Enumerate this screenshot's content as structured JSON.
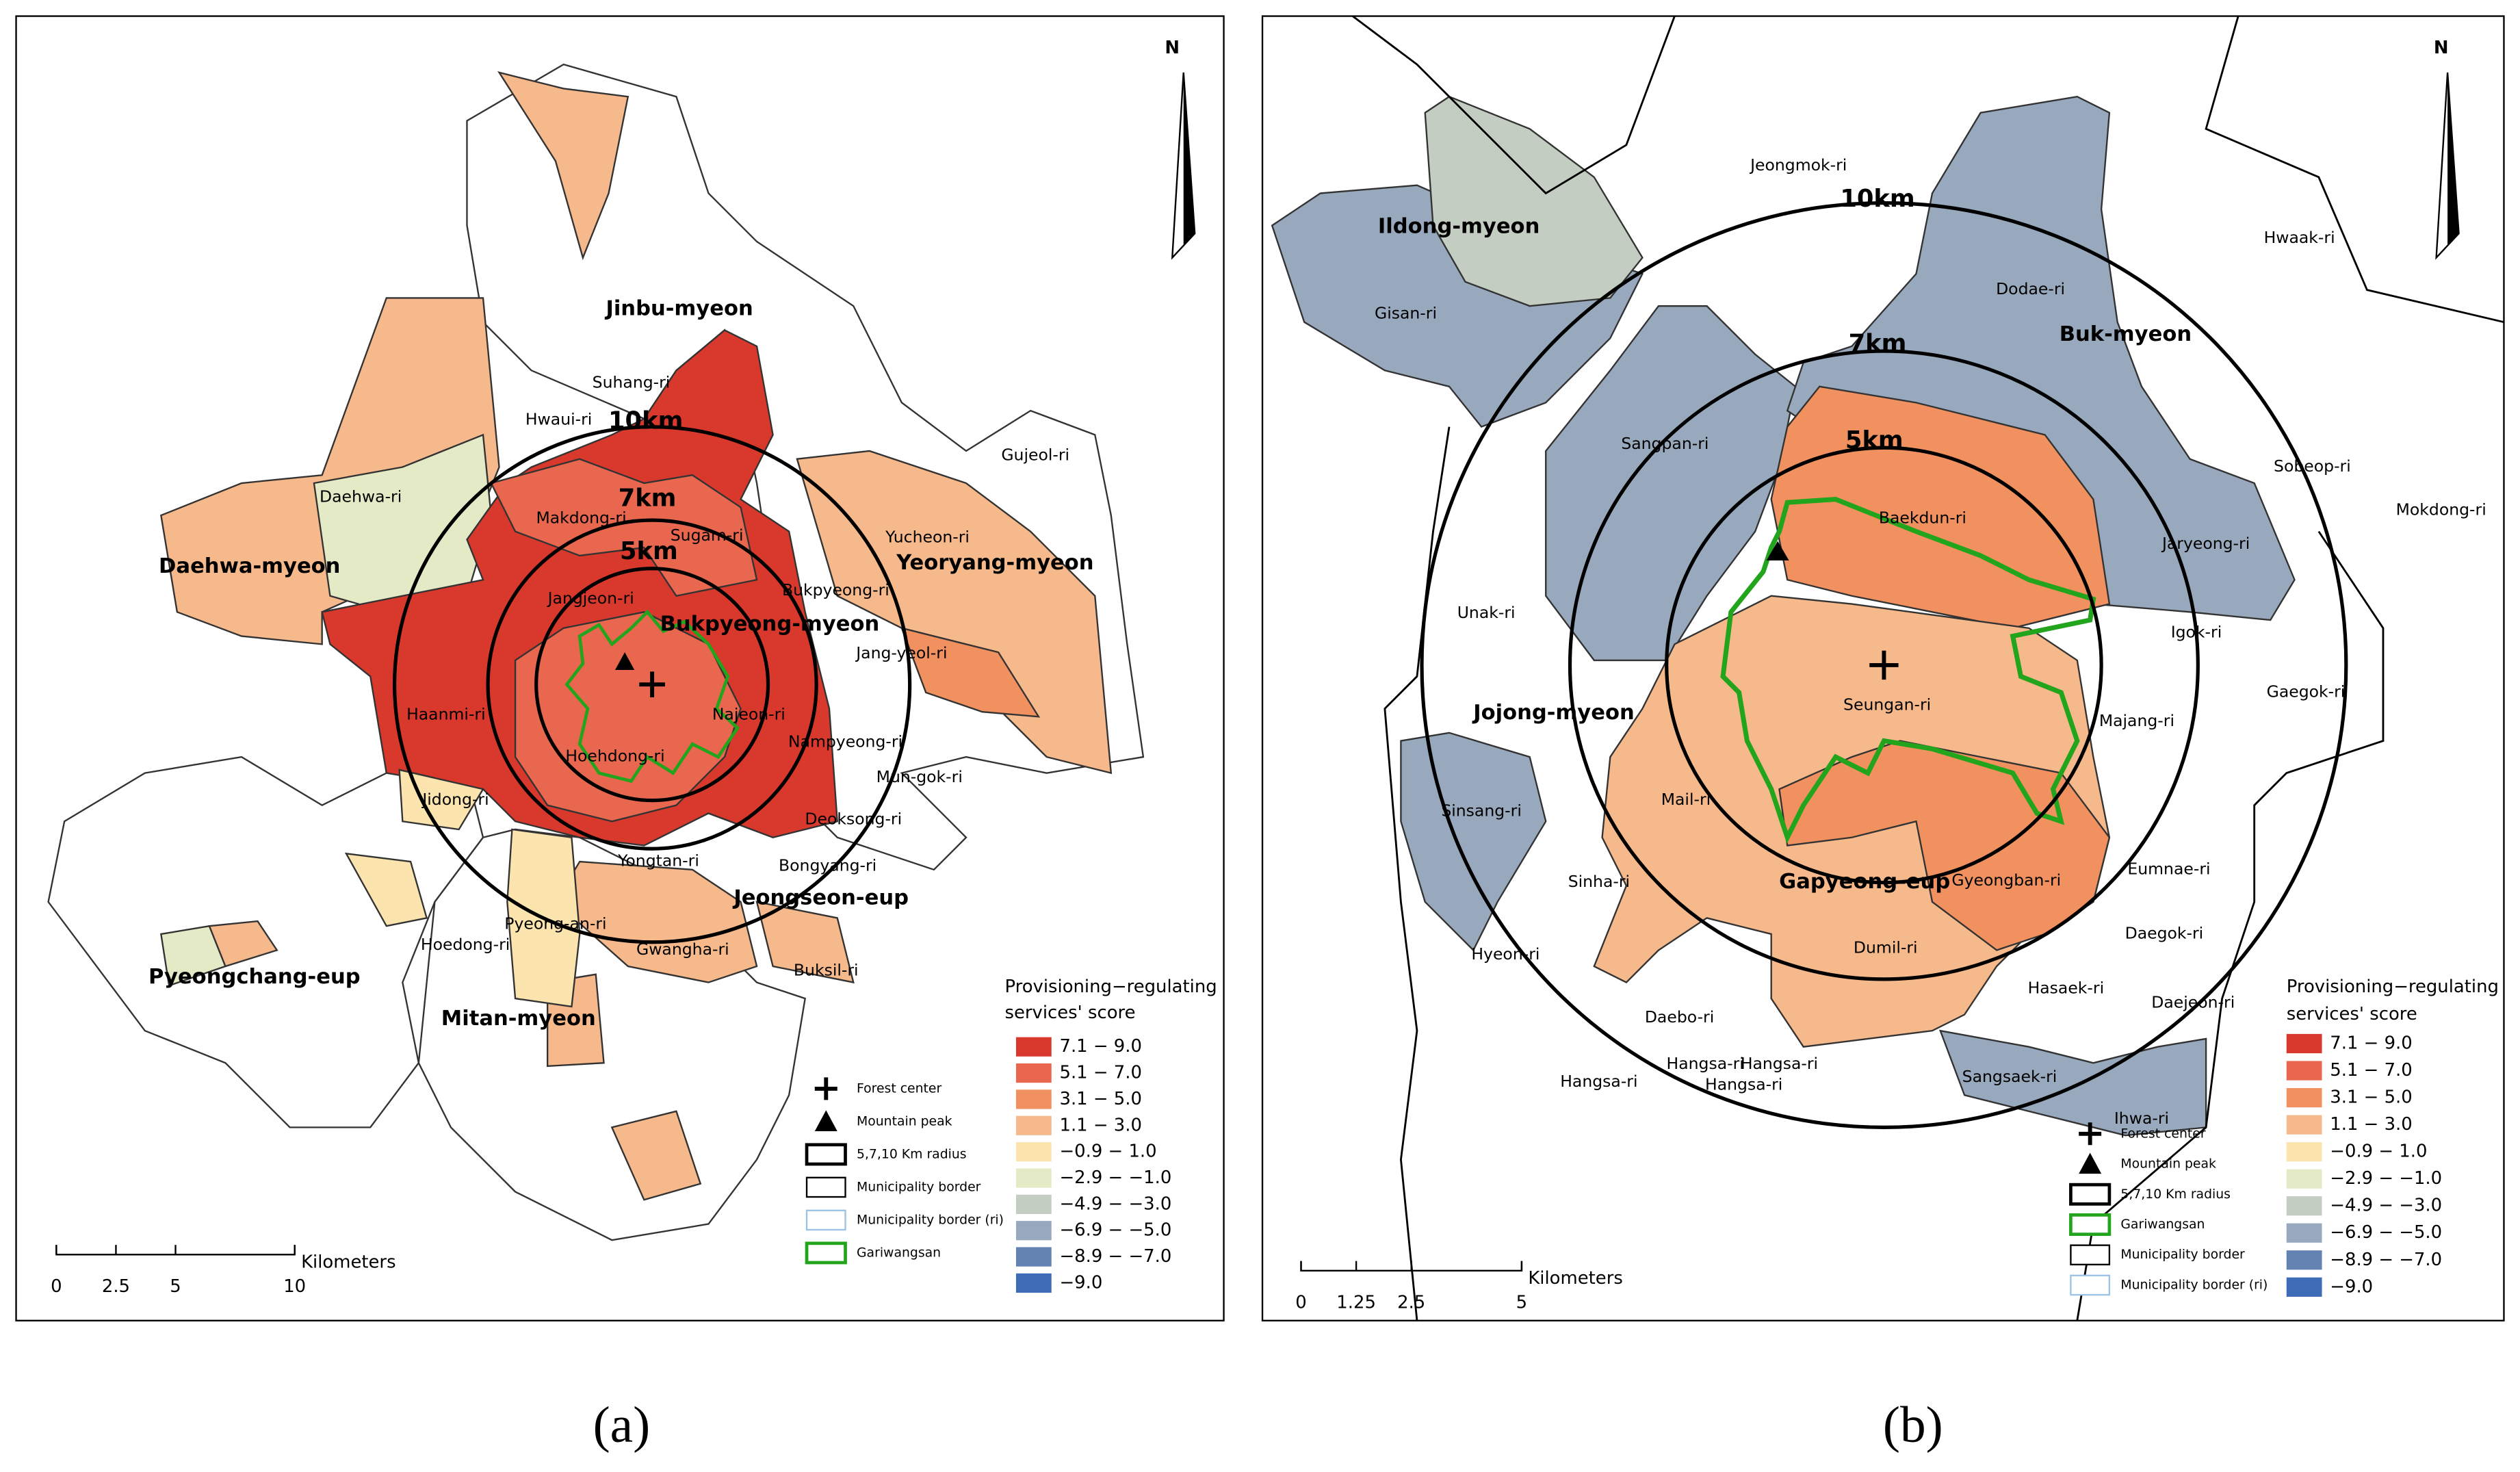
{
  "panels": [
    {
      "caption": "(a)",
      "north": "N",
      "radius_labels": [
        "10km",
        "7km",
        "5km"
      ],
      "places": [
        "Jinbu-myeon",
        "Suhang-ri",
        "Hwaui-ri",
        "Gujeol-ri",
        "Daehwa-ri",
        "Makdong-ri",
        "Sugam-ri",
        "Yucheon-ri",
        "Daehwa-myeon",
        "Yeoryang-myeon",
        "Jangjeon-ri",
        "Bukpyeong-ri",
        "Bukpyeong-myeon",
        "Jang-yeol-ri",
        "Haanmi-ri",
        "Najeon-ri",
        "Hoehdong-ri",
        "Nampyeong-ri",
        "Mun-gok-ri",
        "Jidong-ri",
        "Deoksong-ri",
        "Yongtan-ri",
        "Bongyang-ri",
        "Jeongseon-eup",
        "Pyeong-an-ri",
        "Hoedong-ri",
        "Gwangha-ri",
        "Buksil-ri",
        "Pyeongchang-eup",
        "Mitan-myeon"
      ],
      "legend": {
        "title": [
          "Provisioning−regulating",
          "services' score"
        ],
        "classes": [
          {
            "label": "7.1 − 9.0",
            "color": "#d9382c"
          },
          {
            "label": "5.1 − 7.0",
            "color": "#e8674e"
          },
          {
            "label": "3.1 − 5.0",
            "color": "#f0915f"
          },
          {
            "label": "1.1 − 3.0",
            "color": "#f6b98c"
          },
          {
            "label": "−0.9 − 1.0",
            "color": "#fbe4ae"
          },
          {
            "label": "−2.9 − −1.0",
            "color": "#e5eac6"
          },
          {
            "label": "−4.9 − −3.0",
            "color": "#c4cdc1"
          },
          {
            "label": "−6.9 − −5.0",
            "color": "#98a9bd"
          },
          {
            "label": "−8.9 − −7.0",
            "color": "#6282b1"
          },
          {
            "label": "−9.0",
            "color": "#3f6cb6"
          }
        ]
      },
      "symbols": [
        "Forest center",
        "Mountain peak",
        "5,7,10 Km radius",
        "Municipality border",
        "Municipality border (ri)",
        "Gariwangsan"
      ],
      "scale_bar": {
        "ticks": [
          0,
          2.5,
          5,
          10
        ],
        "unit": "Kilometers"
      }
    },
    {
      "caption": "(b)",
      "north": "N",
      "radius_labels": [
        "10km",
        "7km",
        "5km"
      ],
      "places": [
        "Jeongmok-ri",
        "Ildong-myeon",
        "Hwaak-ri",
        "Gisan-ri",
        "Dodae-ri",
        "Buk-myeon",
        "Sangpan-ri",
        "Sobeop-ri",
        "Mokdong-ri",
        "Baekdun-ri",
        "Jaryeong-ri",
        "Unak-ri",
        "Igok-ri",
        "Jojong-myeon",
        "Seungan-ri",
        "Majang-ri",
        "Gaegok-ri",
        "Sinsang-ri",
        "Mail-ri",
        "Sinha-ri",
        "Gapyeong-eup",
        "Gyeongban-ri",
        "Eumnae-ri",
        "Hyeon-ri",
        "Dumil-ri",
        "Daegok-ri",
        "Hasaek-ri",
        "Daejeon-ri",
        "Daebo-ri",
        "Hangsa-ri",
        "Hangsa-ri",
        "Hangsa-ri",
        "Hangsa-ri",
        "Sangsaek-ri",
        "Ihwa-ri"
      ],
      "legend": {
        "title": [
          "Provisioning−regulating",
          "services' score"
        ],
        "classes": [
          {
            "label": "7.1 − 9.0",
            "color": "#d9382c"
          },
          {
            "label": "5.1 − 7.0",
            "color": "#e8674e"
          },
          {
            "label": "3.1 − 5.0",
            "color": "#f0915f"
          },
          {
            "label": "1.1 − 3.0",
            "color": "#f6b98c"
          },
          {
            "label": "−0.9 − 1.0",
            "color": "#fbe4ae"
          },
          {
            "label": "−2.9 − −1.0",
            "color": "#e5eac6"
          },
          {
            "label": "−4.9 − −3.0",
            "color": "#c4cdc1"
          },
          {
            "label": "−6.9 − −5.0",
            "color": "#98a9bd"
          },
          {
            "label": "−8.9 − −7.0",
            "color": "#6282b1"
          },
          {
            "label": "−9.0",
            "color": "#3f6cb6"
          }
        ]
      },
      "symbols": [
        "Forest center",
        "Mountain peak",
        "5,7,10 Km radius",
        "Gariwangsan",
        "Municipality border",
        "Municipality border (ri)"
      ],
      "scale_bar": {
        "ticks": [
          0,
          1.25,
          2.5,
          5
        ],
        "unit": "Kilometers"
      }
    }
  ]
}
